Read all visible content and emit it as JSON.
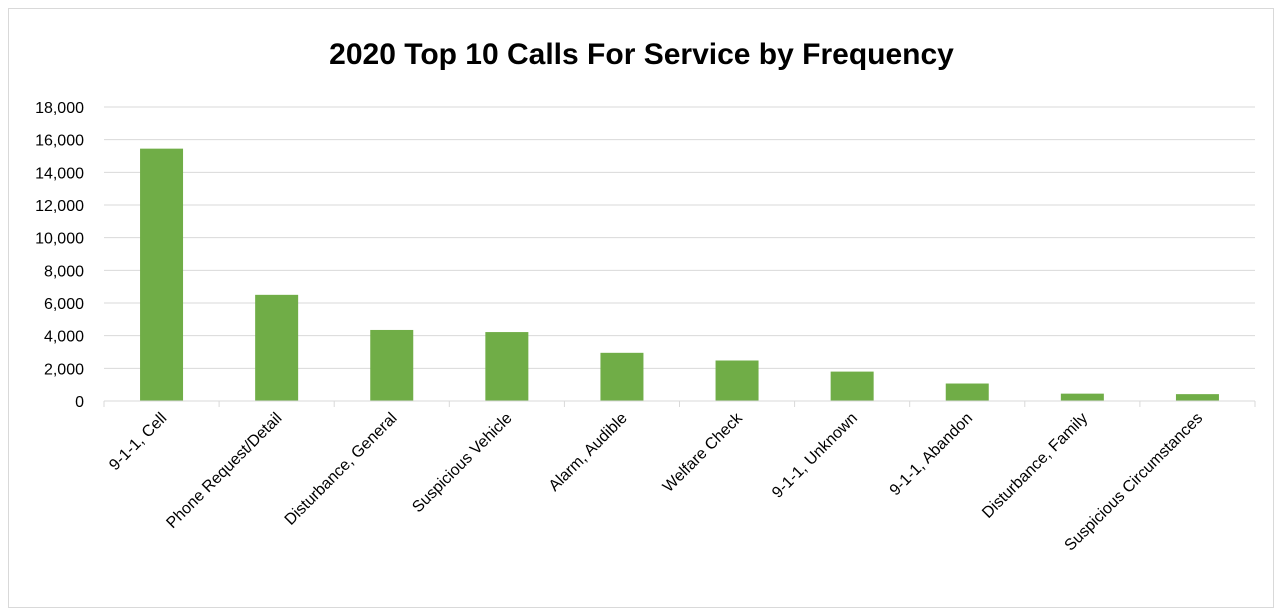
{
  "chart_data": {
    "type": "bar",
    "title": "2020 Top 10 Calls For Service by Frequency",
    "categories": [
      "9-1-1, Cell",
      "Phone Request/Detail",
      "Disturbance, General",
      "Suspicious Vehicle",
      "Alarm, Audible",
      "Welfare Check",
      "9-1-1, Unknown",
      "9-1-1, Abandon",
      "Disturbance, Family",
      "Suspicious Circumstances"
    ],
    "values": [
      15450,
      6500,
      4350,
      4220,
      2950,
      2480,
      1800,
      1070,
      450,
      420
    ],
    "ylim": [
      0,
      18000
    ],
    "yticks": [
      "0",
      "2,000",
      "4,000",
      "6,000",
      "8,000",
      "10,000",
      "12,000",
      "14,000",
      "16,000",
      "18,000"
    ],
    "xlabel": "",
    "ylabel": "",
    "grid": true,
    "legend": "none",
    "bar_color": "#70ad47",
    "grid_color": "#d9d9d9"
  }
}
